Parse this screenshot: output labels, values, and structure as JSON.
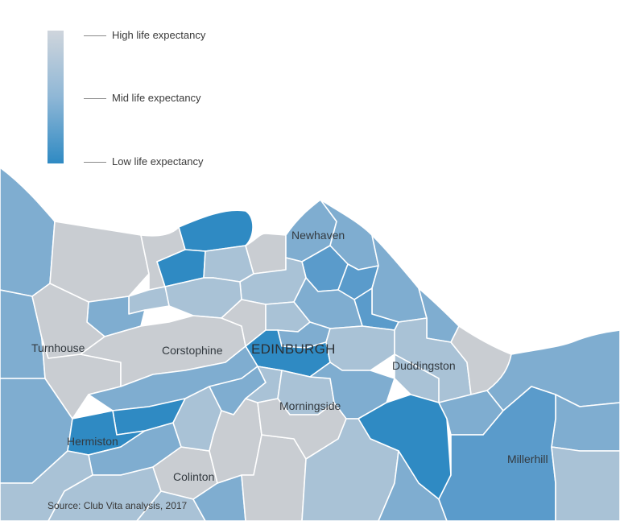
{
  "legend": {
    "high_label": "High life expectancy",
    "mid_label": "Mid life expectancy",
    "low_label": "Low life expectancy"
  },
  "colors": {
    "high": "#c9cdd2",
    "mid_high": "#a9c2d6",
    "mid": "#7fadd0",
    "mid_low": "#5a9bcb",
    "low": "#2f8ac3"
  },
  "map": {
    "city_label": "EDINBURGH",
    "places": {
      "newhaven": "Newhaven",
      "turnhouse": "Turnhouse",
      "corstophine": "Corstophine",
      "duddingston": "Duddingston",
      "morningside": "Morningside",
      "hermiston": "Hermiston",
      "colinton": "Colinton",
      "millerhill": "Millerhill"
    }
  },
  "source": "Source: Club Vita analysis, 2017"
}
